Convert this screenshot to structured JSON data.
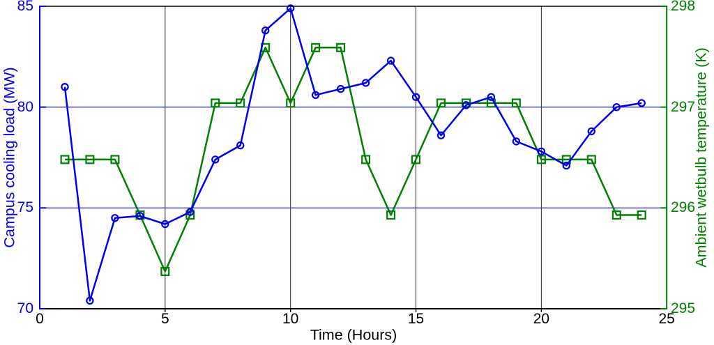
{
  "chart_data": {
    "type": "line",
    "title": "",
    "xlabel": "Time (Hours)",
    "x": [
      1,
      2,
      3,
      4,
      5,
      6,
      7,
      8,
      9,
      10,
      11,
      12,
      13,
      14,
      15,
      16,
      17,
      18,
      19,
      20,
      21,
      22,
      23,
      24
    ],
    "x_axis": {
      "min": 0,
      "max": 25,
      "ticks": [
        0,
        5,
        10,
        15,
        20,
        25
      ],
      "gridlines": [
        5,
        10,
        15,
        20
      ],
      "tick_color": "#000000",
      "gridline_color": "#2b2b2b"
    },
    "left_axis": {
      "label": "Campus cooling load (MW)",
      "min": 70,
      "max": 85,
      "ticks": [
        85,
        80,
        75,
        70
      ],
      "gridlines": [
        80,
        75
      ],
      "color": "#0000ee"
    },
    "right_axis": {
      "label": "Ambient wetbulb temperature (K)",
      "min": 295,
      "max": 298,
      "ticks": [
        298,
        297,
        296,
        295
      ],
      "gridlines": [],
      "color": "#008000"
    },
    "series": [
      {
        "name": "Ambient wetbulb temperature",
        "axis": "right",
        "marker": "square",
        "color": "#008000",
        "values": [
          296.48,
          296.48,
          296.48,
          295.93,
          295.37,
          295.93,
          297.04,
          297.04,
          297.59,
          297.04,
          297.59,
          297.59,
          296.48,
          295.93,
          296.48,
          297.04,
          297.04,
          297.04,
          297.04,
          296.48,
          296.48,
          296.48,
          295.93,
          295.93
        ]
      },
      {
        "name": "Campus cooling load",
        "axis": "left",
        "marker": "circle",
        "color": "#0000ee",
        "values": [
          81.0,
          70.4,
          74.5,
          74.6,
          74.2,
          74.8,
          77.4,
          78.1,
          83.8,
          84.9,
          80.6,
          80.9,
          81.2,
          82.3,
          80.5,
          78.6,
          80.1,
          80.5,
          78.3,
          77.8,
          77.1,
          78.8,
          80.0,
          80.2
        ]
      }
    ],
    "legend": "none",
    "grid": "partial",
    "frame": {
      "top_color": "#000000",
      "bottom_color": "#000000"
    }
  }
}
